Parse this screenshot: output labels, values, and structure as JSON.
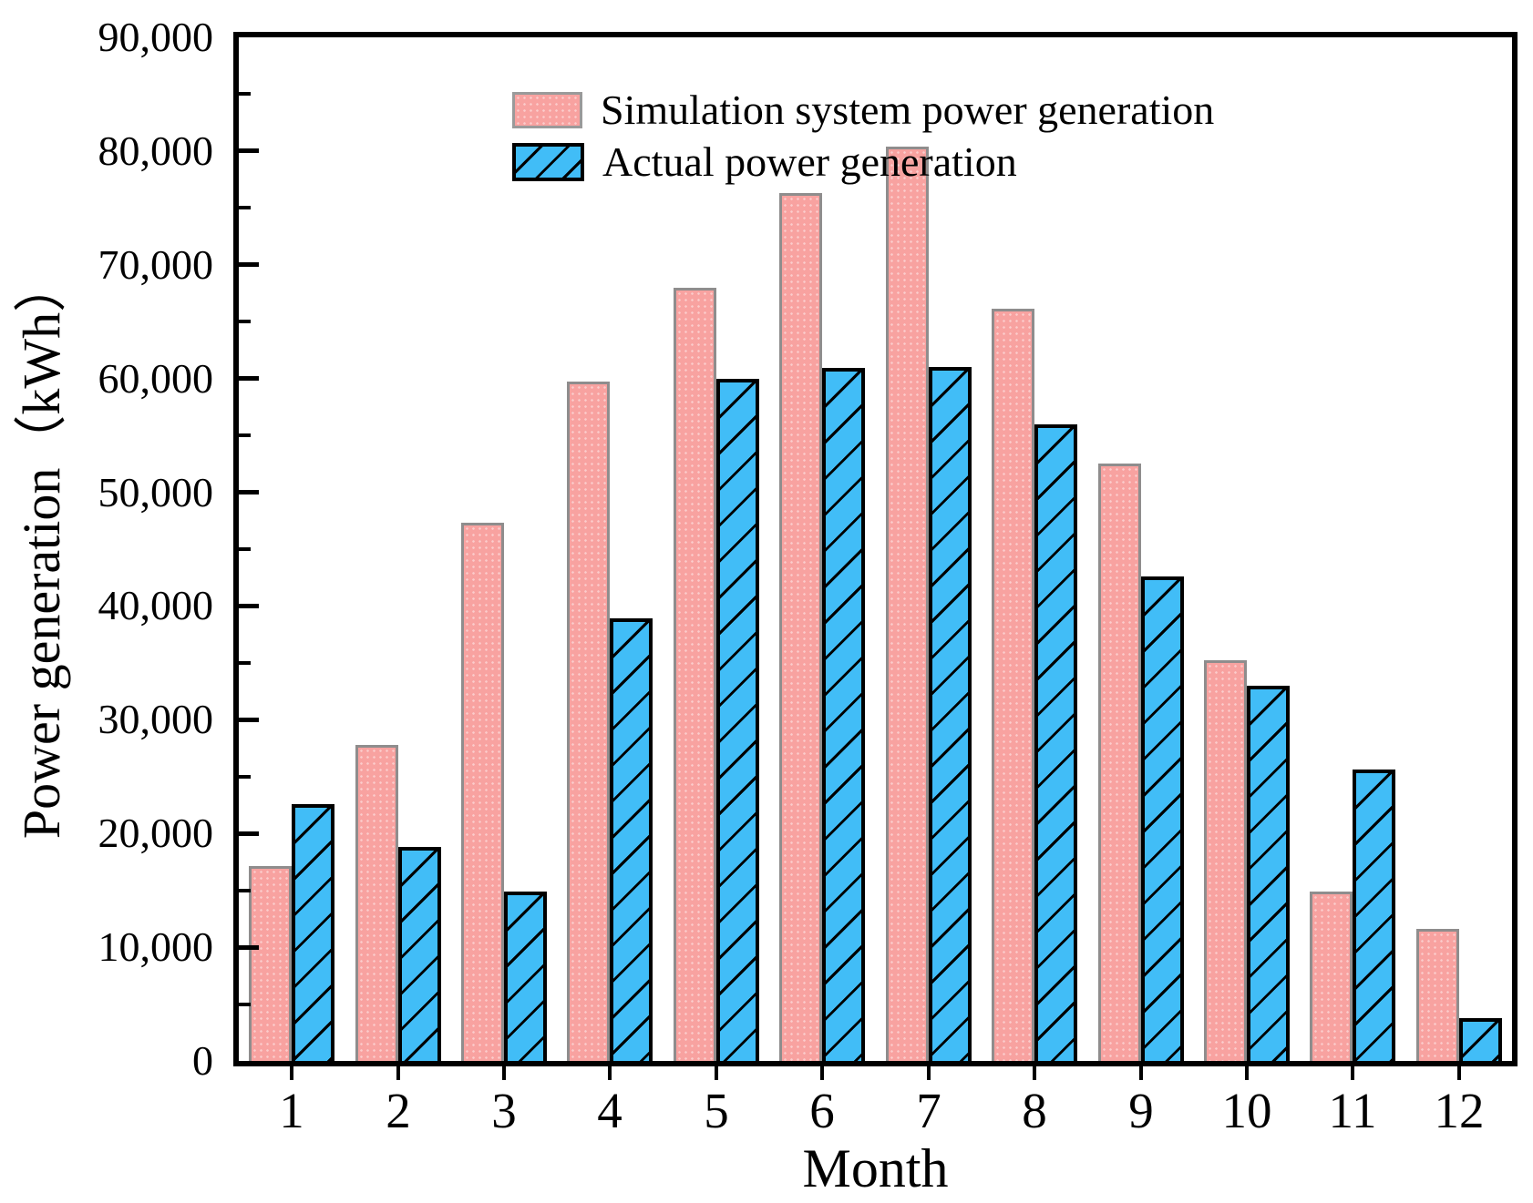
{
  "figure": {
    "background": "#ffffff",
    "axis_color": "#000000",
    "colors": {
      "simulation_fill": "#F8A2A0",
      "simulation_border": "#8F8D8D",
      "actual_fill": "#41BDF7",
      "actual_border": "#000000",
      "actual_hatch": "diagonal-forward-slash"
    }
  },
  "chart_data": {
    "type": "bar",
    "title": "",
    "xlabel": "Month",
    "ylabel": "Power generation（kWh）",
    "categories": [
      "1",
      "2",
      "3",
      "4",
      "5",
      "6",
      "7",
      "8",
      "9",
      "10",
      "11",
      "12"
    ],
    "series": [
      {
        "name": "Simulation system power generation",
        "key": "simulation",
        "values": [
          17100,
          27800,
          47300,
          59700,
          68000,
          76300,
          80400,
          66100,
          52500,
          35200,
          14900,
          11600
        ]
      },
      {
        "name": "Actual power generation",
        "key": "actual",
        "values": [
          22600,
          18800,
          14900,
          38900,
          60000,
          60900,
          61000,
          56000,
          42600,
          33000,
          25600,
          3800
        ]
      }
    ],
    "ylim": [
      0,
      90000
    ],
    "y_major_step": 10000,
    "y_minor_step": 5000,
    "y_tick_labels": [
      "0",
      "10,000",
      "20,000",
      "30,000",
      "40,000",
      "50,000",
      "60,000",
      "70,000",
      "80,000",
      "90,000"
    ],
    "grid": false,
    "legend_position": "top-left-inside"
  }
}
